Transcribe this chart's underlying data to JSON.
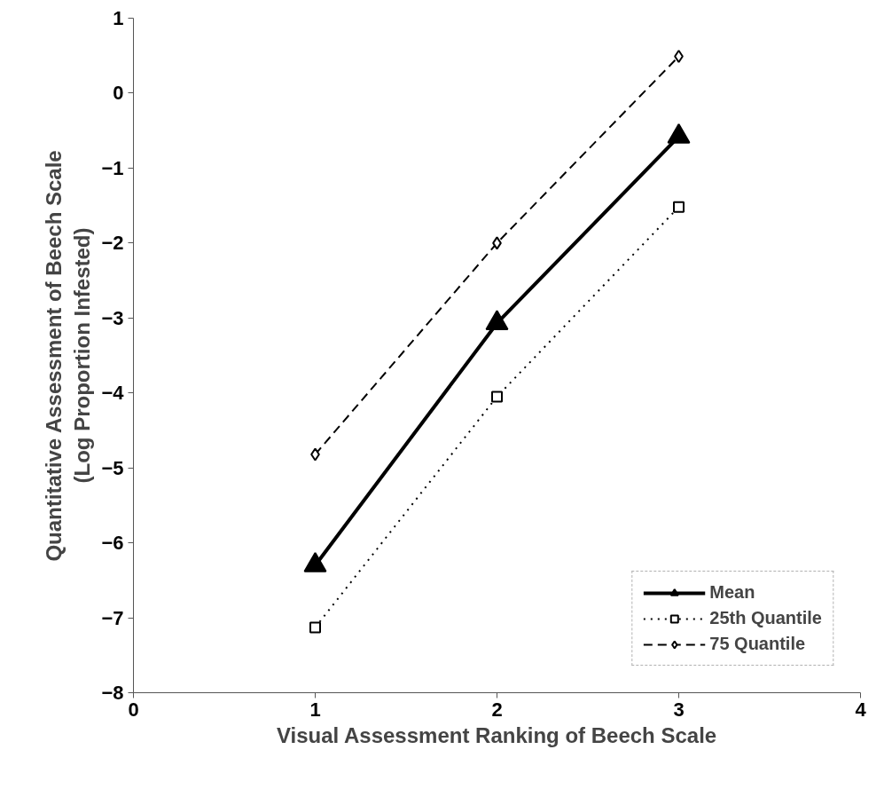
{
  "chart_data": {
    "type": "line",
    "xlabel": "Visual Assessment Ranking of Beech Scale",
    "ylabel": "Quantitative Assessment of Beech Scale\n(Log Proportion Infested)",
    "x": [
      1,
      2,
      3
    ],
    "series": [
      {
        "name": "Mean",
        "color": "#000000",
        "values": [
          -6.3,
          -3.07,
          -0.58
        ],
        "marker": "triangle",
        "line_style": "solid"
      },
      {
        "name": "25th Quantile",
        "color": "#000000",
        "values": [
          -7.13,
          -4.05,
          -1.52
        ],
        "marker": "square",
        "line_style": "dotted"
      },
      {
        "name": "75 Quantile",
        "color": "#000000",
        "values": [
          -4.82,
          -2.0,
          0.49
        ],
        "marker": "diamond",
        "line_style": "dashed"
      }
    ],
    "xlim": [
      0,
      4
    ],
    "xticks": [
      0,
      1,
      2,
      3,
      4
    ],
    "ylim": [
      -8,
      1
    ],
    "yticks": [
      -8,
      -7,
      -6,
      -5,
      -4,
      -3,
      -2,
      -1,
      0,
      1
    ],
    "grid": false,
    "legend": "bottom right"
  }
}
